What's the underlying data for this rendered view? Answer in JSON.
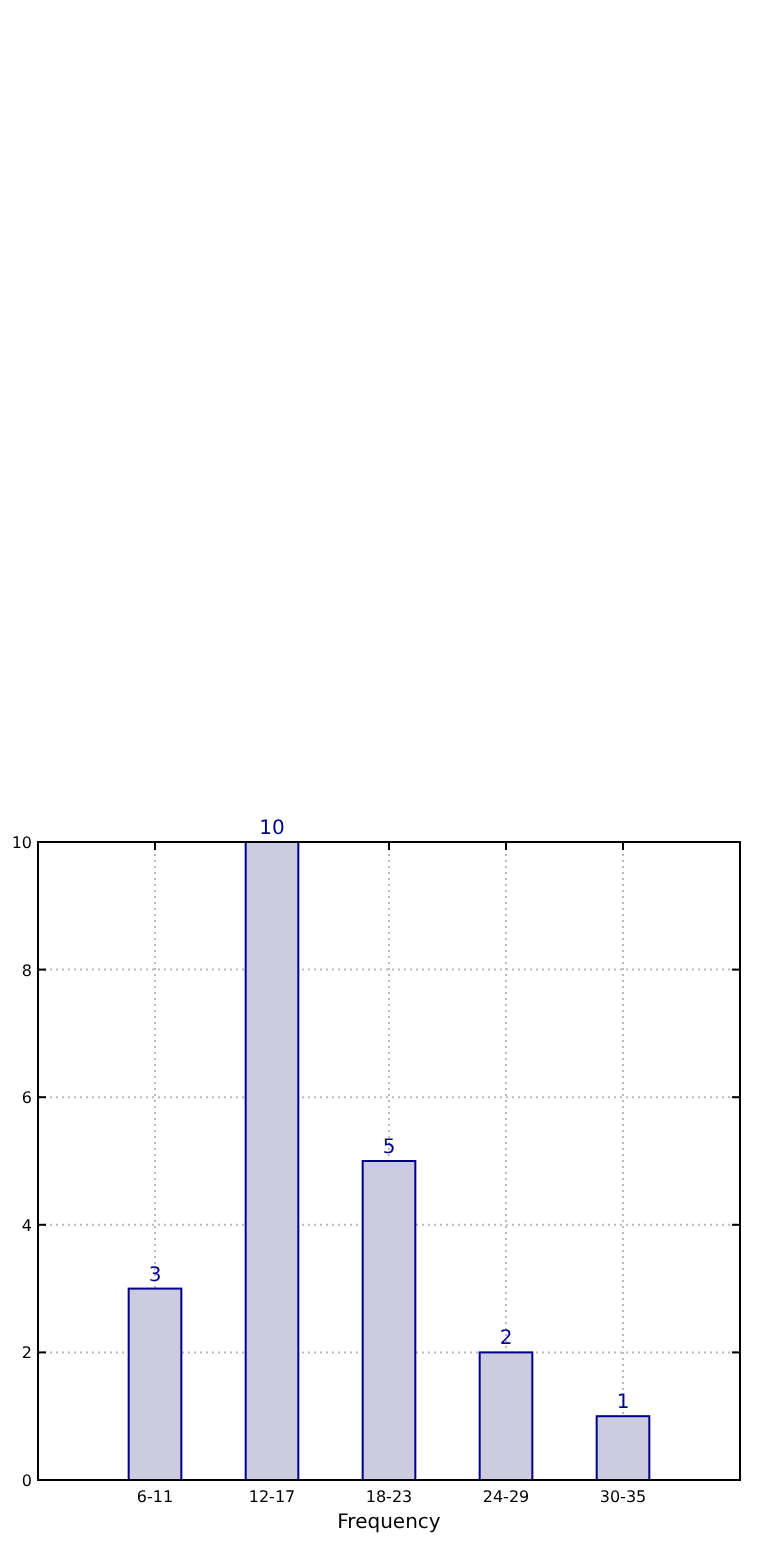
{
  "chart_data": {
    "type": "bar",
    "xlabel": "Frequency",
    "categories": [
      "6-11",
      "12-17",
      "18-23",
      "24-29",
      "30-35"
    ],
    "values": [
      3,
      10,
      5,
      2,
      1
    ],
    "color": "#cccce0",
    "ylim": [
      0,
      10
    ],
    "yticks": [
      0,
      2,
      4,
      6,
      8,
      10
    ],
    "grid": true,
    "data_labels": true
  }
}
